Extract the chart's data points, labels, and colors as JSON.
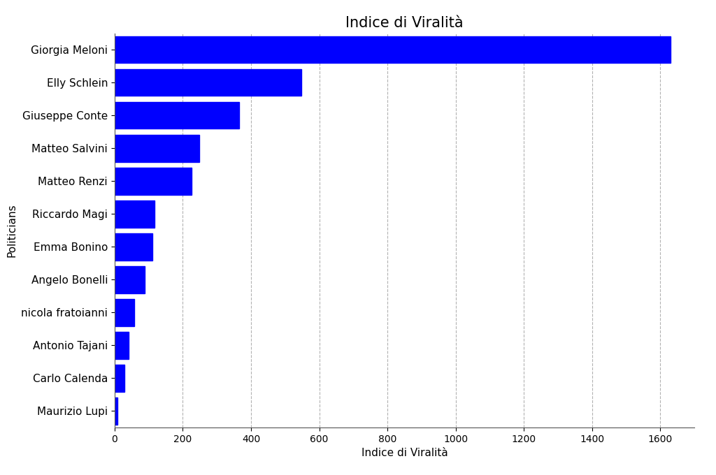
{
  "politicians": [
    "Giorgia Meloni",
    "Elly Schlein",
    "Giuseppe Conte",
    "Matteo Salvini",
    "Matteo Renzi",
    "Riccardo Magi",
    "Emma Bonino",
    "Angelo Bonelli",
    "nicola fratoianni",
    "Antonio Tajani",
    "Carlo Calenda",
    "Maurizio Lupi"
  ],
  "values": [
    1630,
    548,
    365,
    248,
    225,
    118,
    112,
    88,
    58,
    42,
    28,
    8
  ],
  "bar_color": "#0000ff",
  "title": "Indice di Viralità",
  "xlabel": "Indice di Viralità",
  "ylabel": "Politicians",
  "xlim": [
    0,
    1700
  ],
  "xticks": [
    0,
    200,
    400,
    600,
    800,
    1000,
    1200,
    1400,
    1600
  ],
  "background_color": "#ffffff",
  "grid_color": "#aaaaaa",
  "title_fontsize": 15,
  "label_fontsize": 11,
  "tick_fontsize": 10,
  "bar_height": 0.82
}
